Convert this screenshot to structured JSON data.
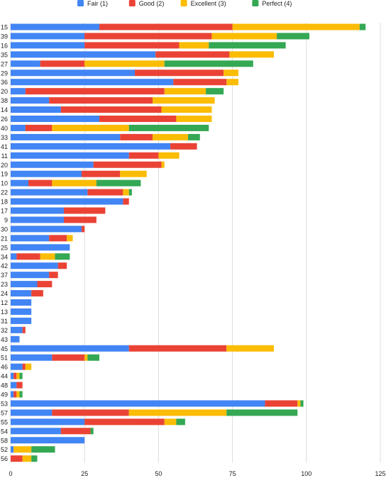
{
  "chart_data": {
    "type": "bar",
    "orientation": "horizontal",
    "stacked": true,
    "title": "",
    "xlabel": "",
    "ylabel": "",
    "xlim": [
      0,
      125
    ],
    "x_ticks": [
      0,
      25,
      50,
      75,
      100,
      125
    ],
    "grid": true,
    "legend_position": "top",
    "categories": [
      "15",
      "39",
      "16",
      "35",
      "27",
      "29",
      "36",
      "20",
      "38",
      "14",
      "26",
      "40",
      "33",
      "41",
      "11",
      "20",
      "19",
      "10",
      "22",
      "18",
      "17",
      "9",
      "30",
      "21",
      "25",
      "34",
      "42",
      "37",
      "23",
      "24",
      "12",
      "13",
      "31",
      "32",
      "43",
      "45",
      "51",
      "46",
      "44",
      "48",
      "49",
      "53",
      "57",
      "55",
      "54",
      "58",
      "52",
      "56"
    ],
    "series": [
      {
        "name": "Fair (1)",
        "color": "#4285f4",
        "values": [
          30,
          25,
          25,
          49,
          10,
          42,
          55,
          5,
          13,
          17,
          30,
          5,
          37,
          54,
          40,
          28,
          24,
          6,
          26,
          38,
          18,
          18,
          24,
          13,
          20,
          2,
          16,
          13,
          9,
          7,
          7,
          7,
          7,
          4,
          3,
          40,
          14,
          4,
          1,
          2,
          1,
          86,
          14,
          25,
          17,
          25,
          1,
          0
        ]
      },
      {
        "name": "Good (2)",
        "color": "#ea4335",
        "values": [
          45,
          43,
          32,
          25,
          15,
          30,
          18,
          47,
          35,
          34,
          26,
          9,
          11,
          9,
          10,
          23,
          13,
          8,
          12,
          2,
          14,
          11,
          1,
          6,
          0,
          8,
          3,
          3,
          5,
          4,
          0,
          0,
          0,
          1,
          0,
          33,
          11,
          1,
          1,
          2,
          1,
          11,
          26,
          27,
          10,
          0,
          0,
          4
        ]
      },
      {
        "name": "Excellent (3)",
        "color": "#fbbc04",
        "values": [
          43,
          22,
          10,
          15,
          27,
          5,
          4,
          14,
          21,
          17,
          12,
          26,
          12,
          0,
          7,
          1,
          9,
          15,
          2,
          0,
          0,
          0,
          0,
          2,
          0,
          5,
          0,
          0,
          0,
          0,
          0,
          0,
          0,
          0,
          0,
          16,
          1,
          2,
          1,
          0,
          1,
          1,
          33,
          4,
          0,
          0,
          6,
          3
        ]
      },
      {
        "name": "Perfect (4)",
        "color": "#34a853",
        "values": [
          2,
          11,
          26,
          0,
          30,
          0,
          0,
          6,
          0,
          0,
          0,
          27,
          4,
          0,
          0,
          0,
          0,
          15,
          1,
          0,
          0,
          0,
          0,
          0,
          0,
          5,
          0,
          0,
          0,
          0,
          0,
          0,
          0,
          0,
          0,
          0,
          4,
          0,
          1,
          0,
          1,
          1,
          24,
          3,
          1,
          0,
          8,
          2
        ]
      }
    ]
  }
}
